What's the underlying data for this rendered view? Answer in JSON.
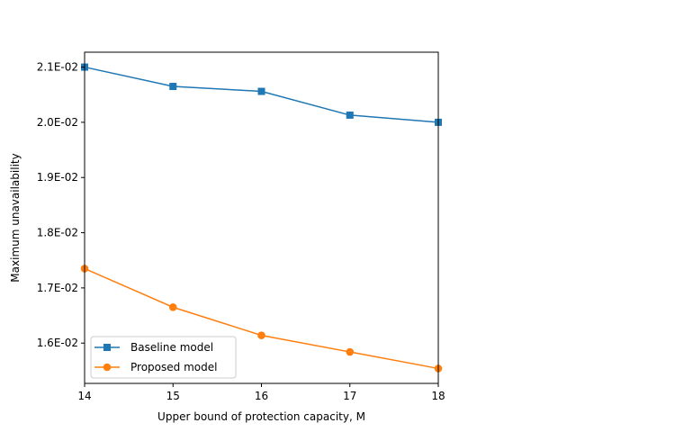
{
  "chart_data": {
    "type": "line",
    "title": "",
    "xlabel": "Upper bound of protection capacity, M",
    "ylabel": "Maximum unavailability",
    "x": [
      14,
      15,
      16,
      17,
      18
    ],
    "xlim": [
      14,
      18
    ],
    "ylim": [
      0.01527,
      0.02127
    ],
    "xticks": [
      14,
      15,
      16,
      17,
      18
    ],
    "xtick_labels": [
      "14",
      "15",
      "16",
      "17",
      "18"
    ],
    "yticks": [
      0.016,
      0.017,
      0.018,
      0.019,
      0.02,
      0.021
    ],
    "ytick_labels": [
      "1.6E-02",
      "1.7E-02",
      "1.8E-02",
      "1.9E-02",
      "2.0E-02",
      "2.1E-02"
    ],
    "grid": false,
    "legend": "lower-left",
    "series": [
      {
        "name": "Baseline model",
        "color": "#1f77b4",
        "marker": "square",
        "values": [
          0.021,
          0.02065,
          0.02056,
          0.02013,
          0.02
        ]
      },
      {
        "name": "Proposed model",
        "color": "#ff7f0e",
        "marker": "circle",
        "values": [
          0.01735,
          0.01665,
          0.01614,
          0.01584,
          0.01554
        ]
      }
    ]
  }
}
